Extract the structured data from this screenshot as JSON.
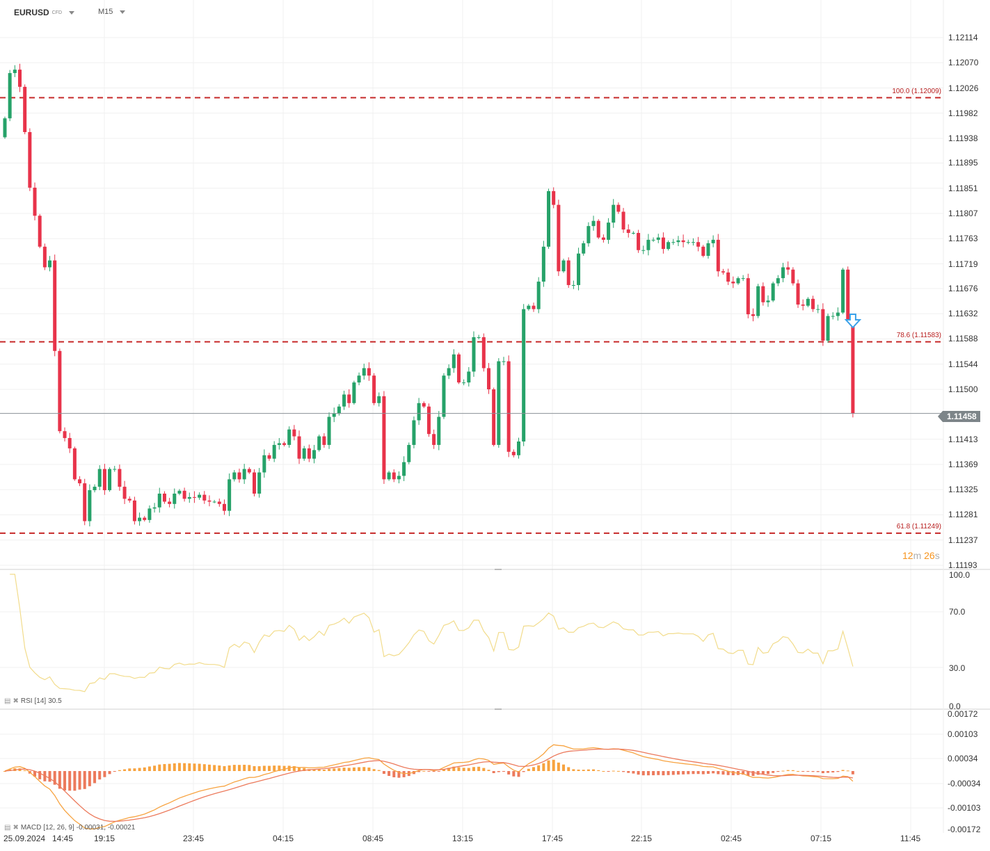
{
  "header": {
    "symbol": "EURUSD",
    "symbol_type": "CFD",
    "timeframe": "M15"
  },
  "current_price": "1.11458",
  "countdown": {
    "minutes": "12",
    "minutes_unit": "m",
    "seconds": "26",
    "seconds_unit": "s"
  },
  "colors": {
    "up": "#26a269",
    "down": "#e8334a",
    "fib": "#c62828",
    "rsi": "#f2dc8c",
    "macd_line": "#f7a340",
    "signal_line": "#ec7a5c",
    "hist_pos": "#f7a340",
    "hist_neg": "#ec7a5c",
    "arrow": "#3aa0e8"
  },
  "fib_levels": [
    {
      "label": "100.0 (1.12009)",
      "price": 1.12009
    },
    {
      "label": "78.6 (1.11583)",
      "price": 1.11583
    },
    {
      "label": "61.8 (1.11249)",
      "price": 1.11249
    }
  ],
  "rsi": {
    "label": "RSI",
    "params": "[14]",
    "value": "30.5",
    "ticks": [
      "100.0",
      "70.0",
      "30.0",
      "0.0"
    ]
  },
  "macd": {
    "label": "MACD",
    "params": "[12, 26, 9]",
    "values": "-0.00031,  -0.00021",
    "ticks": [
      "0.00172",
      "0.00103",
      "0.00034",
      "-0.00034",
      "-0.00103",
      "-0.00172"
    ]
  },
  "chart_data": {
    "type": "candlestick",
    "title": "EURUSD",
    "price_ticks": [
      "1.12114",
      "1.12070",
      "1.12026",
      "1.11982",
      "1.11938",
      "1.11895",
      "1.11851",
      "1.11807",
      "1.11763",
      "1.11719",
      "1.11676",
      "1.11632",
      "1.11588",
      "1.11544",
      "1.11500",
      "1.11413",
      "1.11369",
      "1.11325",
      "1.11281",
      "1.11237",
      "1.11193"
    ],
    "ylim": [
      1.11193,
      1.12114
    ],
    "time_ticks": [
      "25.09.2024",
      "14:45",
      "19:15",
      "23:45",
      "04:15",
      "08:45",
      "13:15",
      "17:45",
      "22:15",
      "02:45",
      "07:15",
      "11:45"
    ],
    "grid": true,
    "first_open": 1.1194,
    "closes": [
      1.11973,
      1.12052,
      1.12058,
      1.12028,
      1.11949,
      1.11852,
      1.11803,
      1.11749,
      1.11713,
      1.11725,
      1.11567,
      1.11427,
      1.11415,
      1.11397,
      1.11343,
      1.11336,
      1.1127,
      1.11324,
      1.1133,
      1.11361,
      1.11324,
      1.11361,
      1.11361,
      1.1133,
      1.11309,
      1.11306,
      1.1127,
      1.11276,
      1.11272,
      1.11292,
      1.11294,
      1.11318,
      1.11304,
      1.113,
      1.11318,
      1.11323,
      1.11309,
      1.11312,
      1.11311,
      1.11316,
      1.11306,
      1.11304,
      1.11304,
      1.113,
      1.11288,
      1.11343,
      1.11355,
      1.11343,
      1.11361,
      1.11355,
      1.11318,
      1.11355,
      1.11385,
      1.11379,
      1.11403,
      1.11406,
      1.11403,
      1.1143,
      1.11418,
      1.11379,
      1.11397,
      1.11379,
      1.11394,
      1.11418,
      1.11403,
      1.11452,
      1.11458,
      1.1147,
      1.11491,
      1.11476,
      1.11512,
      1.11524,
      1.11537,
      1.11524,
      1.11476,
      1.11488,
      1.11343,
      1.11355,
      1.11343,
      1.11349,
      1.11373,
      1.11403,
      1.11446,
      1.11476,
      1.1147,
      1.11422,
      1.11403,
      1.11452,
      1.11524,
      1.11537,
      1.11561,
      1.11512,
      1.11512,
      1.11531,
      1.11591,
      1.11591,
      1.11537,
      1.115,
      1.11403,
      1.11549,
      1.11549,
      1.11391,
      1.11385,
      1.11409,
      1.1164,
      1.11646,
      1.1164,
      1.11688,
      1.11749,
      1.11846,
      1.11822,
      1.11706,
      1.11725,
      1.11682,
      1.11682,
      1.11737,
      1.11755,
      1.11785,
      1.11794,
      1.11765,
      1.11761,
      1.11791,
      1.11822,
      1.1181,
      1.11779,
      1.11773,
      1.11773,
      1.11743,
      1.11743,
      1.11761,
      1.11761,
      1.11765,
      1.11745,
      1.11757,
      1.11757,
      1.1176,
      1.11757,
      1.11757,
      1.11757,
      1.11749,
      1.11733,
      1.11755,
      1.11761,
      1.11706,
      1.11704,
      1.11688,
      1.11685,
      1.11694,
      1.11694,
      1.11631,
      1.11628,
      1.1168,
      1.11652,
      1.11655,
      1.11685,
      1.11694,
      1.11713,
      1.11709,
      1.11685,
      1.11648,
      1.11646,
      1.11658,
      1.1164,
      1.1164,
      1.11585,
      1.11628,
      1.11628,
      1.11634,
      1.11709,
      1.11622,
      1.11458
    ]
  }
}
